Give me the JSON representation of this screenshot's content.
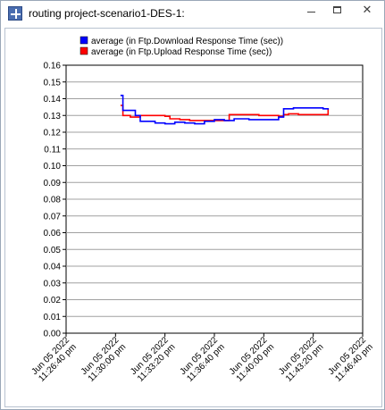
{
  "window": {
    "title": "routing project-scenario1-DES-1:",
    "icon": "plot-window-icon",
    "controls": [
      "minimize-icon",
      "maximize-icon",
      "close-icon"
    ]
  },
  "chart_data": {
    "type": "line",
    "title": "",
    "xlabel": "",
    "ylabel": "",
    "ylim": [
      0.0,
      0.16
    ],
    "yticks": [
      "0.16",
      "0.15",
      "0.14",
      "0.13",
      "0.12",
      "0.11",
      "0.10",
      "0.09",
      "0.08",
      "0.07",
      "0.06",
      "0.05",
      "0.04",
      "0.03",
      "0.02",
      "0.01",
      "0.00"
    ],
    "xlim": [
      "2022-06-05 11:26:40 pm",
      "2022-06-05 11:46:40 pm"
    ],
    "xticks": [
      {
        "line1": "Jun 05 2022",
        "line2": "11:26:40 pm"
      },
      {
        "line1": "Jun 05 2022",
        "line2": "11:30:00 pm"
      },
      {
        "line1": "Jun 05 2022",
        "line2": "11:33:20 pm"
      },
      {
        "line1": "Jun 05 2022",
        "line2": "11:36:40 pm"
      },
      {
        "line1": "Jun 05 2022",
        "line2": "11:40:00 pm"
      },
      {
        "line1": "Jun 05 2022",
        "line2": "11:43:20 pm"
      },
      {
        "line1": "Jun 05 2022",
        "line2": "11:46:40 pm"
      }
    ],
    "grid": "horizontal",
    "legend_position": "top",
    "series": [
      {
        "name": "average (in Ftp.Download Response Time (sec))",
        "color": "#0000ff",
        "points": [
          [
            "11:30:20 pm",
            0.142
          ],
          [
            "11:30:30 pm",
            0.133
          ],
          [
            "11:31:00 pm",
            0.133
          ],
          [
            "11:31:20 pm",
            0.13
          ],
          [
            "11:31:40 pm",
            0.1265
          ],
          [
            "11:32:20 pm",
            0.1265
          ],
          [
            "11:32:40 pm",
            0.1255
          ],
          [
            "11:33:20 pm",
            0.125
          ],
          [
            "11:34:00 pm",
            0.126
          ],
          [
            "11:34:40 pm",
            0.1255
          ],
          [
            "11:35:20 pm",
            0.125
          ],
          [
            "11:36:00 pm",
            0.1265
          ],
          [
            "11:36:40 pm",
            0.1275
          ],
          [
            "11:37:20 pm",
            0.127
          ],
          [
            "11:38:00 pm",
            0.128
          ],
          [
            "11:39:00 pm",
            0.1275
          ],
          [
            "11:40:00 pm",
            0.1275
          ],
          [
            "11:40:40 pm",
            0.1275
          ],
          [
            "11:41:00 pm",
            0.129
          ],
          [
            "11:41:20 pm",
            0.134
          ],
          [
            "11:42:00 pm",
            0.1345
          ],
          [
            "11:43:00 pm",
            0.1345
          ],
          [
            "11:44:00 pm",
            0.134
          ],
          [
            "11:44:20 pm",
            0.1335
          ]
        ]
      },
      {
        "name": "average (in Ftp.Upload Response Time (sec))",
        "color": "#ff0000",
        "points": [
          [
            "11:30:20 pm",
            0.136
          ],
          [
            "11:30:30 pm",
            0.13
          ],
          [
            "11:31:00 pm",
            0.129
          ],
          [
            "11:31:40 pm",
            0.13
          ],
          [
            "11:32:40 pm",
            0.13
          ],
          [
            "11:33:20 pm",
            0.1295
          ],
          [
            "11:33:40 pm",
            0.128
          ],
          [
            "11:34:20 pm",
            0.1275
          ],
          [
            "11:35:00 pm",
            0.127
          ],
          [
            "11:36:00 pm",
            0.127
          ],
          [
            "11:36:40 pm",
            0.127
          ],
          [
            "11:37:20 pm",
            0.127
          ],
          [
            "11:37:40 pm",
            0.1305
          ],
          [
            "11:38:40 pm",
            0.1305
          ],
          [
            "11:39:40 pm",
            0.13
          ],
          [
            "11:40:40 pm",
            0.13
          ],
          [
            "11:41:00 pm",
            0.1295
          ],
          [
            "11:41:20 pm",
            0.1305
          ],
          [
            "11:41:40 pm",
            0.131
          ],
          [
            "11:42:20 pm",
            0.1305
          ],
          [
            "11:43:20 pm",
            0.1305
          ],
          [
            "11:44:00 pm",
            0.1305
          ],
          [
            "11:44:20 pm",
            0.134
          ]
        ]
      }
    ]
  }
}
